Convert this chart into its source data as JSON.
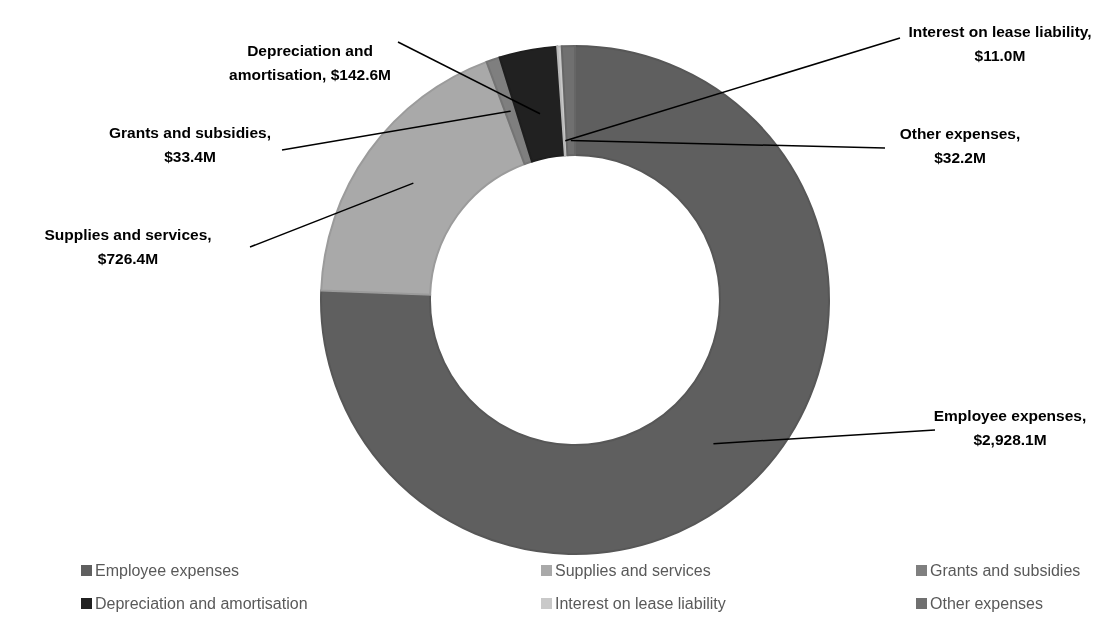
{
  "chart_data": {
    "type": "donut",
    "categories": [
      "Employee expenses",
      "Supplies and services",
      "Grants and subsidies",
      "Depreciation and amortisation",
      "Interest on lease liability",
      "Other expenses"
    ],
    "values": [
      2928.1,
      726.4,
      33.4,
      142.6,
      11.0,
      32.2
    ],
    "value_labels": [
      "Employee expenses, $2,928.1M",
      "Supplies and services, $726.4M",
      "Grants and subsidies, $33.4M",
      "Depreciation and amortisation,  $142.6M",
      "Interest on lease liability, $11.0M",
      "Other expenses, $32.2M"
    ],
    "colors": [
      "#5f5f5f",
      "#a9a9a9",
      "#7f7f7f",
      "#212121",
      "#c9c9c9",
      "#707070"
    ],
    "legend": "bottom"
  }
}
